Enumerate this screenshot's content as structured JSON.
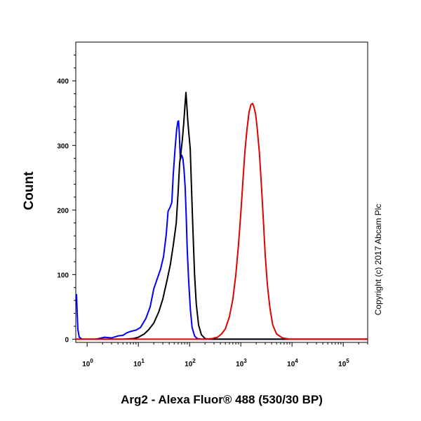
{
  "chart_data": {
    "type": "line",
    "xlabel": "Arg2 - Alexa Fluor® 488 (530/30 BP)",
    "ylabel": "Count",
    "x_scale": "log",
    "xlim": [
      0.6,
      300000
    ],
    "ylim": [
      -5,
      460
    ],
    "x_ticks": [
      {
        "value": 1,
        "base": "10",
        "exp": "0"
      },
      {
        "value": 10,
        "base": "10",
        "exp": "1"
      },
      {
        "value": 100,
        "base": "10",
        "exp": "2"
      },
      {
        "value": 1000,
        "base": "10",
        "exp": "3"
      },
      {
        "value": 10000,
        "base": "10",
        "exp": "4"
      },
      {
        "value": 100000,
        "base": "10",
        "exp": "5"
      }
    ],
    "y_ticks": [
      0,
      100,
      200,
      300,
      400
    ],
    "annotation": "Copyright (c) 2017 Abcam Plc",
    "grid": false,
    "series": [
      {
        "color": "#0000ff",
        "points": [
          [
            0.62,
            70
          ],
          [
            0.64,
            40
          ],
          [
            0.66,
            15
          ],
          [
            0.7,
            3
          ],
          [
            0.8,
            0
          ],
          [
            1.5,
            0
          ],
          [
            2.2,
            3
          ],
          [
            3,
            2
          ],
          [
            4,
            5
          ],
          [
            5,
            6
          ],
          [
            6,
            10
          ],
          [
            7,
            12
          ],
          [
            9,
            14
          ],
          [
            11,
            18
          ],
          [
            14,
            32
          ],
          [
            17,
            50
          ],
          [
            20,
            78
          ],
          [
            23,
            92
          ],
          [
            27,
            108
          ],
          [
            31,
            128
          ],
          [
            35,
            162
          ],
          [
            38,
            198
          ],
          [
            42,
            205
          ],
          [
            45,
            212
          ],
          [
            48,
            255
          ],
          [
            52,
            295
          ],
          [
            56,
            325
          ],
          [
            59,
            337
          ],
          [
            61,
            338
          ],
          [
            63,
            320
          ],
          [
            66,
            278
          ],
          [
            70,
            285
          ],
          [
            74,
            280
          ],
          [
            78,
            262
          ],
          [
            82,
            235
          ],
          [
            86,
            190
          ],
          [
            90,
            140
          ],
          [
            96,
            90
          ],
          [
            104,
            45
          ],
          [
            112,
            18
          ],
          [
            125,
            5
          ],
          [
            140,
            1
          ],
          [
            170,
            0
          ],
          [
            500,
            0
          ],
          [
            300000,
            0
          ]
        ]
      },
      {
        "color": "#000000",
        "points": [
          [
            0.6,
            0
          ],
          [
            5,
            0
          ],
          [
            8,
            1
          ],
          [
            10,
            3
          ],
          [
            13,
            8
          ],
          [
            16,
            15
          ],
          [
            20,
            25
          ],
          [
            25,
            42
          ],
          [
            30,
            62
          ],
          [
            36,
            90
          ],
          [
            42,
            115
          ],
          [
            48,
            145
          ],
          [
            55,
            180
          ],
          [
            60,
            230
          ],
          [
            64,
            272
          ],
          [
            68,
            290
          ],
          [
            72,
            308
          ],
          [
            77,
            335
          ],
          [
            81,
            360
          ],
          [
            85,
            382
          ],
          [
            88,
            365
          ],
          [
            92,
            340
          ],
          [
            97,
            318
          ],
          [
            103,
            295
          ],
          [
            108,
            245
          ],
          [
            115,
            180
          ],
          [
            125,
            100
          ],
          [
            135,
            55
          ],
          [
            150,
            22
          ],
          [
            170,
            7
          ],
          [
            200,
            1
          ],
          [
            250,
            0
          ],
          [
            300000,
            0
          ]
        ]
      },
      {
        "color": "#e00000",
        "points": [
          [
            0.6,
            0
          ],
          [
            200,
            0
          ],
          [
            280,
            1
          ],
          [
            350,
            3
          ],
          [
            420,
            8
          ],
          [
            500,
            16
          ],
          [
            600,
            35
          ],
          [
            700,
            62
          ],
          [
            800,
            100
          ],
          [
            900,
            145
          ],
          [
            1000,
            195
          ],
          [
            1100,
            245
          ],
          [
            1200,
            290
          ],
          [
            1320,
            325
          ],
          [
            1450,
            352
          ],
          [
            1580,
            363
          ],
          [
            1700,
            365
          ],
          [
            1800,
            360
          ],
          [
            1950,
            348
          ],
          [
            2100,
            325
          ],
          [
            2300,
            290
          ],
          [
            2500,
            245
          ],
          [
            2750,
            185
          ],
          [
            3000,
            130
          ],
          [
            3300,
            85
          ],
          [
            3700,
            48
          ],
          [
            4200,
            22
          ],
          [
            5000,
            8
          ],
          [
            6500,
            2
          ],
          [
            9000,
            0
          ],
          [
            300000,
            0
          ]
        ]
      }
    ]
  }
}
